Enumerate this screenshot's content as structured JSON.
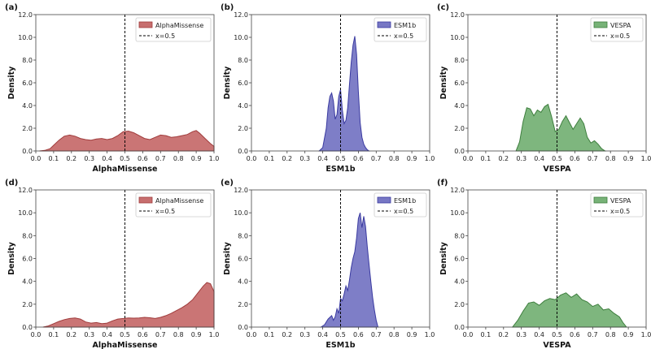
{
  "chart_data": [
    {
      "panel_label": "(a)",
      "type": "area",
      "xlabel": "AlphaMissense",
      "ylabel": "Density",
      "xlim": [
        0.0,
        1.0
      ],
      "ylim": [
        0.0,
        12.0
      ],
      "xticks": [
        "0.0",
        "0.1",
        "0.2",
        "0.3",
        "0.4",
        "0.5",
        "0.6",
        "0.7",
        "0.8",
        "0.9",
        "1.0"
      ],
      "yticks": [
        "0.0",
        "2.0",
        "4.0",
        "6.0",
        "8.0",
        "10.0",
        "12.0"
      ],
      "grid": false,
      "legend_position": "top-right",
      "legend": [
        "AlphaMissense",
        "x=0.5"
      ],
      "threshold": 0.5,
      "fill_color": "#c76e6e",
      "edge_color": "#a03c3c",
      "series": [
        {
          "name": "AlphaMissense",
          "x": [
            0.02,
            0.05,
            0.08,
            0.1,
            0.13,
            0.16,
            0.19,
            0.22,
            0.25,
            0.28,
            0.31,
            0.34,
            0.37,
            0.4,
            0.43,
            0.46,
            0.49,
            0.52,
            0.55,
            0.58,
            0.61,
            0.64,
            0.67,
            0.7,
            0.73,
            0.76,
            0.79,
            0.82,
            0.85,
            0.88,
            0.9,
            0.92,
            0.95,
            0.98,
            1.0
          ],
          "y": [
            0.0,
            0.05,
            0.2,
            0.5,
            0.95,
            1.3,
            1.4,
            1.3,
            1.1,
            1.0,
            0.95,
            1.05,
            1.1,
            1.0,
            1.1,
            1.35,
            1.7,
            1.75,
            1.6,
            1.35,
            1.1,
            1.0,
            1.2,
            1.4,
            1.35,
            1.2,
            1.25,
            1.35,
            1.45,
            1.7,
            1.8,
            1.55,
            1.1,
            0.65,
            0.4
          ]
        }
      ]
    },
    {
      "panel_label": "(b)",
      "type": "area",
      "xlabel": "ESM1b",
      "ylabel": "Density",
      "xlim": [
        0.0,
        1.0
      ],
      "ylim": [
        0.0,
        12.0
      ],
      "xticks": [
        "0.0",
        "0.1",
        "0.2",
        "0.3",
        "0.4",
        "0.5",
        "0.6",
        "0.7",
        "0.8",
        "0.9",
        "1.0"
      ],
      "yticks": [
        "0.0",
        "2.0",
        "4.0",
        "6.0",
        "8.0",
        "10.0",
        "12.0"
      ],
      "grid": false,
      "legend_position": "top-right",
      "legend": [
        "ESM1b",
        "x=0.5"
      ],
      "threshold": 0.5,
      "fill_color": "#7777c4",
      "edge_color": "#3a3aa0",
      "series": [
        {
          "name": "ESM1b",
          "x": [
            0.38,
            0.4,
            0.42,
            0.43,
            0.44,
            0.45,
            0.46,
            0.47,
            0.48,
            0.49,
            0.5,
            0.51,
            0.52,
            0.53,
            0.54,
            0.55,
            0.56,
            0.57,
            0.58,
            0.59,
            0.6,
            0.61,
            0.62,
            0.63,
            0.64,
            0.65,
            0.66
          ],
          "y": [
            0.0,
            0.3,
            2.0,
            3.8,
            4.8,
            5.1,
            4.4,
            2.8,
            3.2,
            4.8,
            5.4,
            3.6,
            2.4,
            2.7,
            3.8,
            5.8,
            7.8,
            9.3,
            10.1,
            8.5,
            5.2,
            2.5,
            1.2,
            0.6,
            0.3,
            0.1,
            0.0
          ]
        }
      ]
    },
    {
      "panel_label": "(c)",
      "type": "area",
      "xlabel": "VESPA",
      "ylabel": "Density",
      "xlim": [
        0.0,
        1.0
      ],
      "ylim": [
        0.0,
        12.0
      ],
      "xticks": [
        "0.0",
        "0.1",
        "0.2",
        "0.3",
        "0.4",
        "0.5",
        "0.6",
        "0.7",
        "0.8",
        "0.9",
        "1.0"
      ],
      "yticks": [
        "0.0",
        "2.0",
        "4.0",
        "6.0",
        "8.0",
        "10.0",
        "12.0"
      ],
      "grid": false,
      "legend_position": "top-right",
      "legend": [
        "VESPA",
        "x=0.5"
      ],
      "threshold": 0.5,
      "fill_color": "#77b277",
      "edge_color": "#3d7e3d",
      "series": [
        {
          "name": "VESPA",
          "x": [
            0.27,
            0.29,
            0.31,
            0.33,
            0.35,
            0.37,
            0.39,
            0.41,
            0.43,
            0.45,
            0.47,
            0.49,
            0.51,
            0.53,
            0.55,
            0.57,
            0.59,
            0.61,
            0.63,
            0.65,
            0.67,
            0.69,
            0.71,
            0.73,
            0.75,
            0.77
          ],
          "y": [
            0.0,
            0.8,
            2.6,
            3.8,
            3.7,
            3.1,
            3.6,
            3.4,
            3.9,
            4.1,
            3.0,
            1.7,
            1.9,
            2.6,
            3.1,
            2.5,
            1.9,
            2.4,
            2.9,
            2.4,
            1.2,
            0.7,
            0.9,
            0.6,
            0.2,
            0.0
          ]
        }
      ]
    },
    {
      "panel_label": "(d)",
      "type": "area",
      "xlabel": "AlphaMissense",
      "ylabel": "Density",
      "xlim": [
        0.0,
        1.0
      ],
      "ylim": [
        0.0,
        12.0
      ],
      "xticks": [
        "0.0",
        "0.1",
        "0.2",
        "0.3",
        "0.4",
        "0.5",
        "0.6",
        "0.7",
        "0.8",
        "0.9",
        "1.0"
      ],
      "yticks": [
        "0.0",
        "2.0",
        "4.0",
        "6.0",
        "8.0",
        "10.0",
        "12.0"
      ],
      "grid": false,
      "legend_position": "top-right",
      "legend": [
        "AlphaMissense",
        "x=0.5"
      ],
      "threshold": 0.5,
      "fill_color": "#c76e6e",
      "edge_color": "#a03c3c",
      "series": [
        {
          "name": "AlphaMissense",
          "x": [
            0.04,
            0.07,
            0.1,
            0.13,
            0.16,
            0.19,
            0.22,
            0.25,
            0.28,
            0.31,
            0.34,
            0.37,
            0.4,
            0.43,
            0.46,
            0.49,
            0.52,
            0.55,
            0.58,
            0.61,
            0.64,
            0.67,
            0.7,
            0.73,
            0.76,
            0.79,
            0.82,
            0.85,
            0.88,
            0.9,
            0.92,
            0.94,
            0.96,
            0.98,
            1.0
          ],
          "y": [
            0.0,
            0.1,
            0.3,
            0.5,
            0.65,
            0.75,
            0.8,
            0.7,
            0.45,
            0.35,
            0.4,
            0.3,
            0.35,
            0.55,
            0.7,
            0.75,
            0.8,
            0.78,
            0.8,
            0.85,
            0.82,
            0.75,
            0.85,
            1.0,
            1.2,
            1.45,
            1.7,
            2.0,
            2.4,
            2.8,
            3.2,
            3.6,
            3.9,
            3.8,
            3.1
          ]
        }
      ]
    },
    {
      "panel_label": "(e)",
      "type": "area",
      "xlabel": "ESM1b",
      "ylabel": "Density",
      "xlim": [
        0.0,
        1.0
      ],
      "ylim": [
        0.0,
        12.0
      ],
      "xticks": [
        "0.0",
        "0.1",
        "0.2",
        "0.3",
        "0.4",
        "0.5",
        "0.6",
        "0.7",
        "0.8",
        "0.9",
        "1.0"
      ],
      "yticks": [
        "0.0",
        "2.0",
        "4.0",
        "6.0",
        "8.0",
        "10.0",
        "12.0"
      ],
      "grid": false,
      "legend_position": "top-right",
      "legend": [
        "ESM1b",
        "x=0.5"
      ],
      "threshold": 0.5,
      "fill_color": "#7777c4",
      "edge_color": "#3a3aa0",
      "series": [
        {
          "name": "ESM1b",
          "x": [
            0.39,
            0.41,
            0.43,
            0.45,
            0.46,
            0.47,
            0.48,
            0.49,
            0.5,
            0.51,
            0.52,
            0.53,
            0.54,
            0.55,
            0.56,
            0.57,
            0.58,
            0.59,
            0.6,
            0.61,
            0.62,
            0.63,
            0.64,
            0.65,
            0.66,
            0.67,
            0.68,
            0.69,
            0.7,
            0.71
          ],
          "y": [
            0.0,
            0.2,
            0.7,
            1.0,
            0.6,
            0.9,
            1.6,
            1.2,
            2.5,
            2.3,
            2.9,
            3.6,
            3.2,
            4.1,
            5.2,
            6.0,
            6.6,
            7.8,
            9.5,
            10.0,
            8.7,
            9.7,
            8.8,
            7.0,
            5.5,
            4.0,
            2.6,
            1.5,
            0.6,
            0.0
          ]
        }
      ]
    },
    {
      "panel_label": "(f)",
      "type": "area",
      "xlabel": "VESPA",
      "ylabel": "Density",
      "xlim": [
        0.0,
        1.0
      ],
      "ylim": [
        0.0,
        12.0
      ],
      "xticks": [
        "0.0",
        "0.1",
        "0.2",
        "0.3",
        "0.4",
        "0.5",
        "0.6",
        "0.7",
        "0.8",
        "0.9",
        "1.0"
      ],
      "yticks": [
        "0.0",
        "2.0",
        "4.0",
        "6.0",
        "8.0",
        "10.0",
        "12.0"
      ],
      "grid": false,
      "legend_position": "top-right",
      "legend": [
        "VESPA",
        "x=0.5"
      ],
      "threshold": 0.5,
      "fill_color": "#77b277",
      "edge_color": "#3d7e3d",
      "series": [
        {
          "name": "VESPA",
          "x": [
            0.25,
            0.28,
            0.31,
            0.34,
            0.37,
            0.4,
            0.43,
            0.46,
            0.49,
            0.52,
            0.55,
            0.58,
            0.61,
            0.64,
            0.67,
            0.7,
            0.73,
            0.76,
            0.79,
            0.82,
            0.85,
            0.87,
            0.89
          ],
          "y": [
            0.0,
            0.6,
            1.4,
            2.1,
            2.2,
            1.9,
            2.3,
            2.5,
            2.4,
            2.8,
            3.0,
            2.6,
            2.9,
            2.4,
            2.2,
            1.8,
            2.0,
            1.5,
            1.6,
            1.2,
            0.9,
            0.4,
            0.0
          ]
        }
      ]
    }
  ]
}
